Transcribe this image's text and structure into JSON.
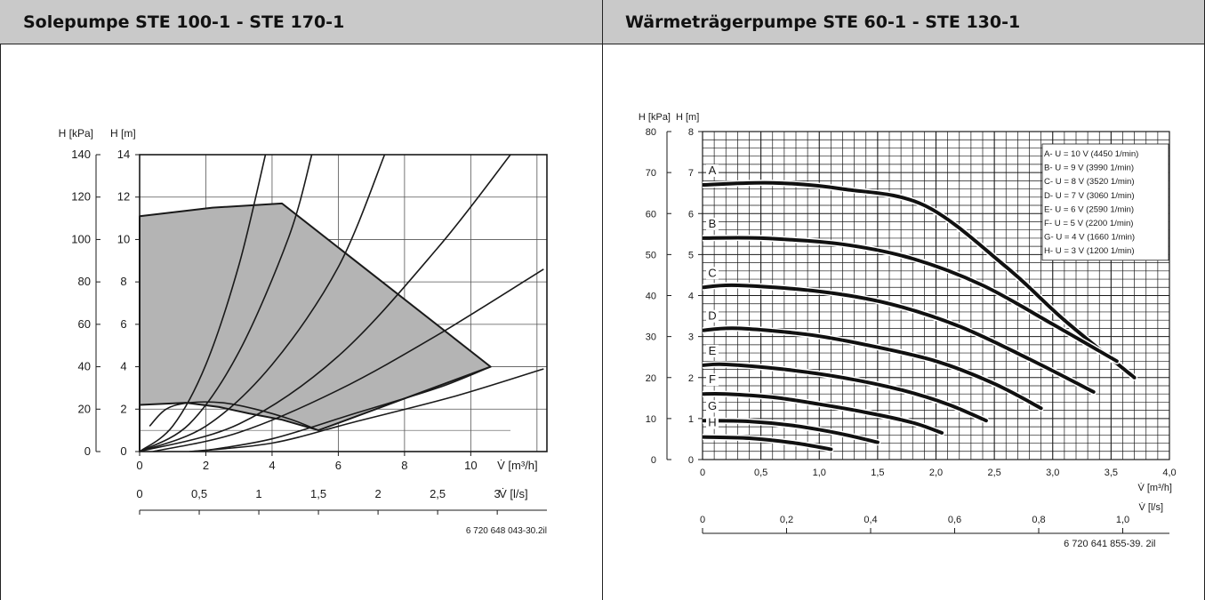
{
  "left": {
    "title": "Solepumpe STE 100-1 - STE 170-1",
    "footnote": "6 720 648 043-30.2il"
  },
  "right": {
    "title": "Wärmeträgerpumpe STE 60-1 - STE 130-1",
    "footnote": "6 720 641 855-39. 2il"
  },
  "chart_data": [
    {
      "type": "line",
      "title": "Solepumpe STE 100-1 - STE 170-1",
      "y_labels": [
        "H [kPa]",
        "H [m]"
      ],
      "xlabel": "V̇ [m³/h]",
      "x2label": "V̇ [l/s]",
      "xlim": [
        0,
        12.3
      ],
      "ylim_m": [
        0,
        14
      ],
      "ylim_kpa": [
        0,
        140
      ],
      "x_ticks": [
        "0",
        "2",
        "4",
        "6",
        "8",
        "10"
      ],
      "x2_ticks": [
        "0",
        "0,5",
        "1",
        "1,5",
        "2",
        "2,5",
        "3"
      ],
      "y_m_ticks": [
        "0",
        "2",
        "4",
        "6",
        "8",
        "10",
        "12",
        "14"
      ],
      "y_kpa_ticks": [
        "0",
        "20",
        "40",
        "60",
        "80",
        "100",
        "120",
        "140"
      ],
      "grid": true,
      "operating_area": {
        "fill": "#b4b4b4",
        "polygon": [
          [
            0,
            0
          ],
          [
            0,
            11.1
          ],
          [
            2.2,
            11.5
          ],
          [
            4.3,
            11.7
          ],
          [
            10.6,
            4.0
          ],
          [
            5.4,
            1.0
          ],
          [
            4.3,
            1.5
          ],
          [
            3.3,
            1.8
          ],
          [
            2.4,
            2.1
          ],
          [
            1.4,
            2.3
          ],
          [
            0,
            2.2
          ]
        ]
      },
      "series": [
        {
          "x": [
            0,
            1.0,
            2.0,
            3.0,
            3.8
          ],
          "y": [
            0,
            1.2,
            4.1,
            8.8,
            14
          ]
        },
        {
          "x": [
            0,
            1.5,
            3.0,
            4.5,
            5.2
          ],
          "y": [
            0,
            1.3,
            4.7,
            10.1,
            14
          ]
        },
        {
          "x": [
            0,
            2.0,
            4.0,
            6.0,
            7.4
          ],
          "y": [
            0,
            1.2,
            4.1,
            8.7,
            14
          ]
        },
        {
          "x": [
            0,
            3.0,
            6.0,
            9.0,
            11.2
          ],
          "y": [
            0,
            1.3,
            4.5,
            9.6,
            14
          ]
        },
        {
          "x": [
            0.4,
            3.0,
            6.0,
            9.0,
            12.2
          ],
          "y": [
            0,
            0.9,
            2.9,
            5.5,
            8.6
          ]
        },
        {
          "x": [
            1.5,
            4.0,
            6.5,
            9.5,
            12.2
          ],
          "y": [
            0,
            0.4,
            1.4,
            2.6,
            3.9
          ]
        },
        {
          "x": [
            0.3,
            0.8,
            1.5,
            2.5,
            3.5,
            4.6,
            5.4
          ],
          "y": [
            1.2,
            2.0,
            2.3,
            2.3,
            2.0,
            1.5,
            1.0
          ]
        },
        {
          "x": [
            1.8,
            4.0,
            6.5,
            9.0,
            10.6
          ],
          "y": [
            0,
            0.6,
            1.8,
            3.0,
            4.0
          ]
        }
      ]
    },
    {
      "type": "line",
      "title": "Wärmeträgerpumpe STE 60-1 - STE 130-1",
      "y_labels": [
        "H [kPa]",
        "H [m]"
      ],
      "xlabel": "V̇ [m³/h]",
      "x2label": "V̇ [l/s]",
      "xlim": [
        0,
        4.0
      ],
      "ylim_m": [
        0,
        8
      ],
      "ylim_kpa": [
        0,
        80
      ],
      "x_ticks": [
        "0",
        "0,5",
        "1,0",
        "1,5",
        "2,0",
        "2,5",
        "3,0",
        "3,5",
        "4,0"
      ],
      "x2_ticks": [
        "0",
        "0,2",
        "0,4",
        "0,6",
        "0,8",
        "1,0"
      ],
      "y_m_ticks": [
        "0",
        "1",
        "2",
        "3",
        "4",
        "5",
        "6",
        "7",
        "8"
      ],
      "y_kpa_ticks": [
        "0",
        "10",
        "20",
        "30",
        "40",
        "50",
        "60",
        "70",
        "80"
      ],
      "grid": true,
      "legend": {
        "placement": "top-right",
        "entries": [
          "A-  U = 10 V (4450 1/min)",
          "B-  U = 9 V (3990 1/min)",
          "C-  U = 8 V (3520 1/min)",
          "D-  U = 7 V (3060 1/min)",
          "E-  U = 6 V (2590 1/min)",
          "F-  U = 5 V (2200 1/min)",
          "G-  U = 4 V (1660 1/min)",
          "H-  U = 3 V (1200 1/min)"
        ]
      },
      "series": [
        {
          "name": "A",
          "x": [
            0,
            0.6,
            1.2,
            1.9,
            2.6,
            3.1,
            3.7
          ],
          "y": [
            6.7,
            6.75,
            6.6,
            6.2,
            4.7,
            3.4,
            2.0
          ]
        },
        {
          "name": "B",
          "x": [
            0,
            0.5,
            1.2,
            1.8,
            2.4,
            3.0,
            3.55
          ],
          "y": [
            5.4,
            5.4,
            5.25,
            4.9,
            4.25,
            3.3,
            2.4
          ]
        },
        {
          "name": "C",
          "x": [
            0,
            0.3,
            1.0,
            1.6,
            2.2,
            2.8,
            3.35
          ],
          "y": [
            4.2,
            4.25,
            4.1,
            3.8,
            3.25,
            2.45,
            1.65
          ]
        },
        {
          "name": "D",
          "x": [
            0,
            0.3,
            0.9,
            1.4,
            2.0,
            2.5,
            2.9
          ],
          "y": [
            3.15,
            3.2,
            3.05,
            2.8,
            2.4,
            1.85,
            1.25
          ]
        },
        {
          "name": "E",
          "x": [
            0,
            0.2,
            0.7,
            1.2,
            1.7,
            2.1,
            2.43
          ],
          "y": [
            2.3,
            2.32,
            2.2,
            2.0,
            1.7,
            1.35,
            0.95
          ]
        },
        {
          "name": "F",
          "x": [
            0,
            0.2,
            0.6,
            1.0,
            1.4,
            1.8,
            2.05
          ],
          "y": [
            1.6,
            1.6,
            1.52,
            1.35,
            1.15,
            0.9,
            0.65
          ]
        },
        {
          "name": "G",
          "x": [
            0,
            0.4,
            0.8,
            1.2,
            1.5
          ],
          "y": [
            0.95,
            0.93,
            0.82,
            0.62,
            0.42
          ]
        },
        {
          "name": "H",
          "x": [
            0,
            0.4,
            0.8,
            1.1
          ],
          "y": [
            0.55,
            0.52,
            0.4,
            0.25
          ]
        }
      ]
    }
  ]
}
